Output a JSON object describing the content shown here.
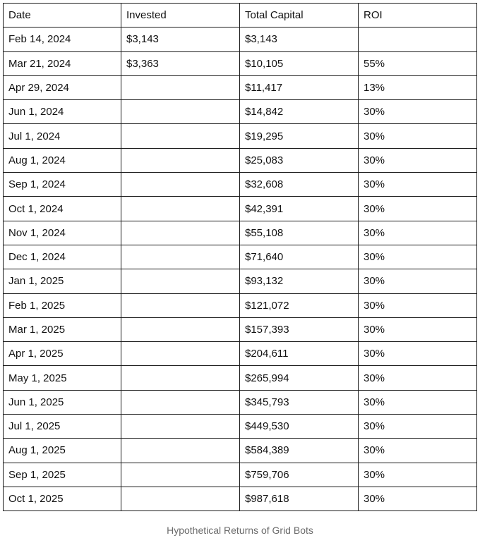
{
  "table": {
    "headers": [
      "Date",
      "Invested",
      "Total Capital",
      "ROI"
    ],
    "rows": [
      [
        "Feb 14, 2024",
        "$3,143",
        "$3,143",
        ""
      ],
      [
        "Mar 21, 2024",
        "$3,363",
        "$10,105",
        "55%"
      ],
      [
        "Apr 29, 2024",
        "",
        "$11,417",
        "13%"
      ],
      [
        "Jun 1, 2024",
        "",
        "$14,842",
        "30%"
      ],
      [
        "Jul 1, 2024",
        "",
        "$19,295",
        "30%"
      ],
      [
        "Aug 1, 2024",
        "",
        "$25,083",
        "30%"
      ],
      [
        "Sep 1, 2024",
        "",
        "$32,608",
        "30%"
      ],
      [
        "Oct 1, 2024",
        "",
        "$42,391",
        "30%"
      ],
      [
        "Nov 1, 2024",
        "",
        "$55,108",
        "30%"
      ],
      [
        "Dec 1, 2024",
        "",
        "$71,640",
        "30%"
      ],
      [
        "Jan 1, 2025",
        "",
        "$93,132",
        "30%"
      ],
      [
        "Feb 1, 2025",
        "",
        "$121,072",
        "30%"
      ],
      [
        "Mar 1, 2025",
        "",
        "$157,393",
        "30%"
      ],
      [
        "Apr 1, 2025",
        "",
        "$204,611",
        "30%"
      ],
      [
        "May 1, 2025",
        "",
        "$265,994",
        "30%"
      ],
      [
        "Jun 1, 2025",
        "",
        "$345,793",
        "30%"
      ],
      [
        "Jul 1, 2025",
        "",
        "$449,530",
        "30%"
      ],
      [
        "Aug 1, 2025",
        "",
        "$584,389",
        "30%"
      ],
      [
        "Sep 1, 2025",
        "",
        "$759,706",
        "30%"
      ],
      [
        "Oct 1, 2025",
        "",
        "$987,618",
        "30%"
      ]
    ]
  },
  "caption": "Hypothetical Returns of Grid Bots"
}
